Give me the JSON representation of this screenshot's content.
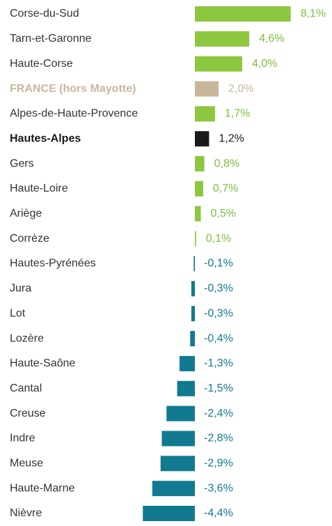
{
  "chart_data": {
    "type": "bar",
    "orientation": "horizontal",
    "categories": [
      "Corse-du-Sud",
      "Tarn-et-Garonne",
      "Haute-Corse",
      "FRANCE (hors Mayotte)",
      "Alpes-de-Haute-Provence",
      "Hautes-Alpes",
      "Gers",
      "Haute-Loire",
      "Ariège",
      "Corrèze",
      "Hautes-Pyrénées",
      "Jura",
      "Lot",
      "Lozère",
      "Haute-Saône",
      "Cantal",
      "Creuse",
      "Indre",
      "Meuse",
      "Haute-Marne",
      "Nièvre"
    ],
    "values": [
      8.1,
      4.6,
      4.0,
      2.0,
      1.7,
      1.2,
      0.8,
      0.7,
      0.5,
      0.1,
      -0.1,
      -0.3,
      -0.3,
      -0.4,
      -1.3,
      -1.5,
      -2.4,
      -2.8,
      -2.9,
      -3.6,
      -4.4
    ],
    "value_labels": [
      "8,1%",
      "4,6%",
      "4,0%",
      "2,0%",
      "1,7%",
      "1,2%",
      "0,8%",
      "0,7%",
      "0,5%",
      "0,1%",
      "-0,1%",
      "-0,3%",
      "-0,3%",
      "-0,4%",
      "-1,3%",
      "-1,5%",
      "-2,4%",
      "-2,8%",
      "-2,9%",
      "-3,6%",
      "-4,4%"
    ],
    "colors": [
      "#8dc63f",
      "#8dc63f",
      "#8dc63f",
      "#c9b79c",
      "#8dc63f",
      "#1a1a1a",
      "#8dc63f",
      "#8dc63f",
      "#8dc63f",
      "#8dc63f",
      "#117a91",
      "#117a91",
      "#117a91",
      "#117a91",
      "#117a91",
      "#117a91",
      "#117a91",
      "#117a91",
      "#117a91",
      "#117a91",
      "#117a91"
    ],
    "category_colors": [
      "#333333",
      "#333333",
      "#333333",
      "#c9b79c",
      "#333333",
      "#1a1a1a",
      "#333333",
      "#333333",
      "#333333",
      "#333333",
      "#333333",
      "#333333",
      "#333333",
      "#333333",
      "#333333",
      "#333333",
      "#333333",
      "#333333",
      "#333333",
      "#333333",
      "#333333"
    ],
    "bold_categories": [
      false,
      false,
      false,
      true,
      false,
      true,
      false,
      false,
      false,
      false,
      false,
      false,
      false,
      false,
      false,
      false,
      false,
      false,
      false,
      false,
      false
    ],
    "xlim": [
      -5,
      9
    ]
  }
}
